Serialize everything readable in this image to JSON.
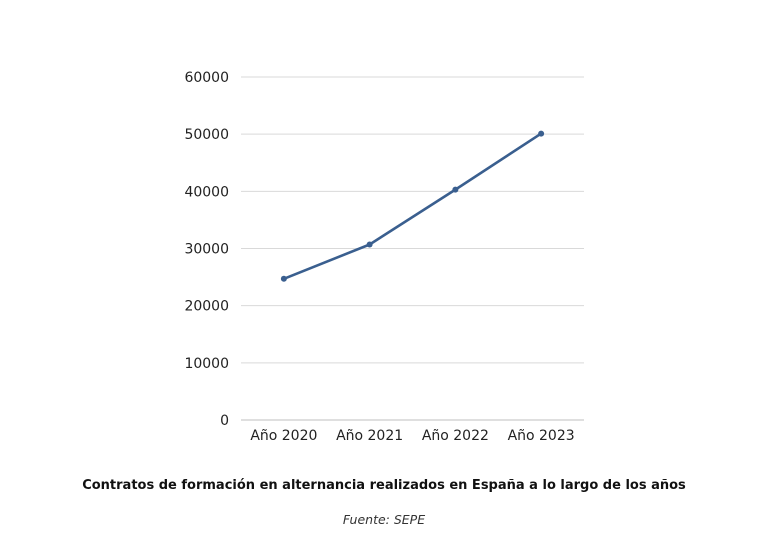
{
  "chart_data": {
    "type": "line",
    "categories": [
      "Año 2020",
      "Año 2021",
      "Año 2022",
      "Año 2023"
    ],
    "series": [
      {
        "values": [
          24700,
          30700,
          40300,
          50100
        ]
      }
    ],
    "y_ticks": [
      "0",
      "10000",
      "20000",
      "30000",
      "40000",
      "50000",
      "60000"
    ],
    "ylim": [
      0,
      60000
    ],
    "grid": true,
    "legend": "none",
    "title": "Contratos de formación en alternancia realizados en España a lo largo de los años",
    "source": "Fuente: SEPE",
    "colors": {
      "line": "#3a5f8f",
      "grid": "#d9d9d9",
      "axis": "#bfbfbf"
    }
  }
}
